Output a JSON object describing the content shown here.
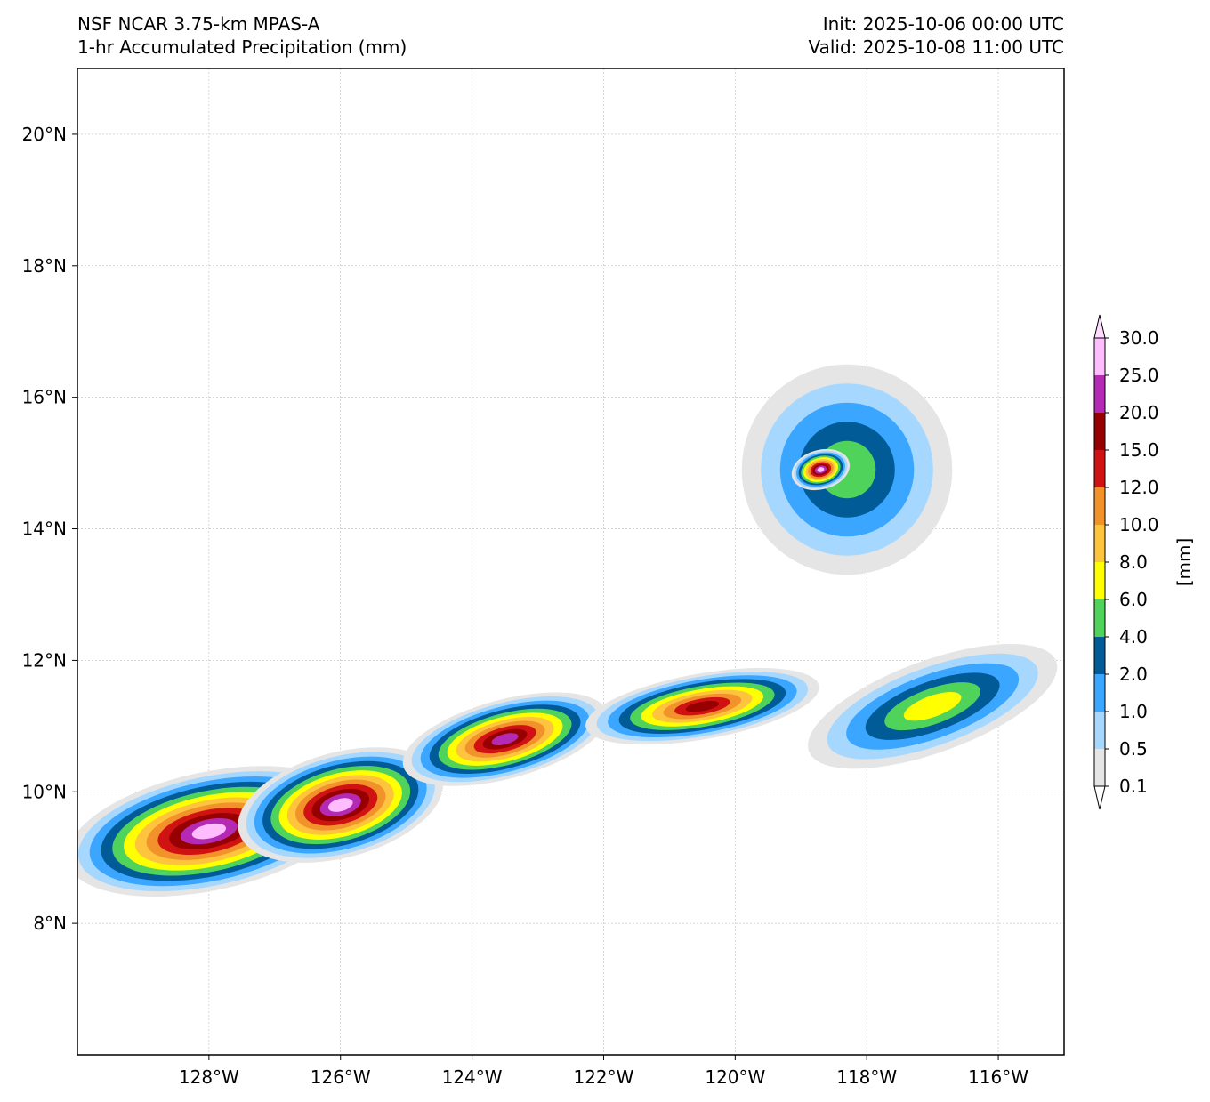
{
  "header": {
    "model": "NSF NCAR 3.75-km MPAS-A",
    "field": "1-hr Accumulated Precipitation (mm)",
    "init": "Init: 2025-10-06 00:00 UTC",
    "valid": "Valid: 2025-10-08 11:00 UTC"
  },
  "map": {
    "lon_range": [
      -130,
      -115
    ],
    "lat_range": [
      6,
      21
    ],
    "lon_ticks": [
      {
        "value": -128,
        "label": "128°W"
      },
      {
        "value": -126,
        "label": "126°W"
      },
      {
        "value": -124,
        "label": "124°W"
      },
      {
        "value": -122,
        "label": "122°W"
      },
      {
        "value": -120,
        "label": "120°W"
      },
      {
        "value": -118,
        "label": "118°W"
      },
      {
        "value": -116,
        "label": "116°W"
      }
    ],
    "lat_ticks": [
      {
        "value": 8,
        "label": "8°N"
      },
      {
        "value": 10,
        "label": "10°N"
      },
      {
        "value": 12,
        "label": "12°N"
      },
      {
        "value": 14,
        "label": "14°N"
      },
      {
        "value": 16,
        "label": "16°N"
      },
      {
        "value": 18,
        "label": "18°N"
      },
      {
        "value": 20,
        "label": "20°N"
      }
    ],
    "gridlines": true,
    "precip_features": [
      {
        "name": "itcz-band-west",
        "lon": -128.0,
        "lat": 9.4,
        "rlon": 2.2,
        "rlat": 0.9,
        "rot": -12,
        "max_mm": 30
      },
      {
        "name": "itcz-band-central-west",
        "lon": -126.0,
        "lat": 9.8,
        "rlon": 1.6,
        "rlat": 0.8,
        "rot": -15,
        "max_mm": 25
      },
      {
        "name": "itcz-band-central",
        "lon": -123.5,
        "lat": 10.8,
        "rlon": 1.6,
        "rlat": 0.6,
        "rot": -15,
        "max_mm": 20
      },
      {
        "name": "itcz-band-east",
        "lon": -120.5,
        "lat": 11.3,
        "rlon": 1.8,
        "rlat": 0.5,
        "rot": -10,
        "max_mm": 15
      },
      {
        "name": "itcz-band-far-east",
        "lon": -117.0,
        "lat": 11.3,
        "rlon": 2.0,
        "rlat": 0.7,
        "rot": -20,
        "max_mm": 6
      },
      {
        "name": "cyclone-outer",
        "lon": -118.3,
        "lat": 14.9,
        "rlon": 1.6,
        "rlat": 1.6,
        "rot": 0,
        "max_mm": 4
      },
      {
        "name": "cyclone-eyewall",
        "lon": -118.7,
        "lat": 14.9,
        "rlon": 0.45,
        "rlat": 0.3,
        "rot": -15,
        "max_mm": 30
      }
    ]
  },
  "colorbar": {
    "unit_label": "[mm]",
    "levels": [
      "0.1",
      "0.5",
      "1.0",
      "2.0",
      "4.0",
      "6.0",
      "8.0",
      "10.0",
      "12.0",
      "15.0",
      "20.0",
      "25.0",
      "30.0"
    ],
    "colors": [
      "#e5e5e5",
      "#a6d8ff",
      "#3aa6ff",
      "#005b96",
      "#4fd35b",
      "#ffff00",
      "#ffc43d",
      "#f2922b",
      "#d11212",
      "#960000",
      "#b52ab5",
      "#ffbcff"
    ],
    "under_color": "#ffffff",
    "over_color": "#ffdcff",
    "extend": "both"
  }
}
